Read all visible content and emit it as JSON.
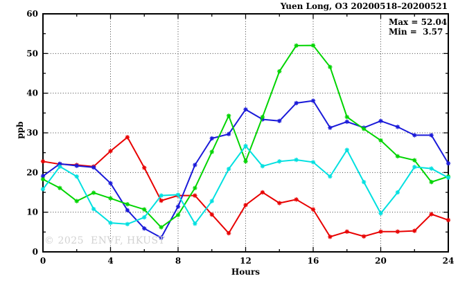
{
  "title": "Yuen Long, O3 20200518–20200521",
  "annotations": {
    "max_label": "Max = 52.04",
    "min_label": "Min =  3.57"
  },
  "watermark": "© 2025  ENVF, HKUST",
  "axes": {
    "x_label": "Hours",
    "y_label": "ppb"
  },
  "chart_data": {
    "type": "line",
    "title": "Yuen Long, O3 20200518–20200521",
    "xlabel": "Hours",
    "ylabel": "ppb",
    "xlim": [
      0,
      24
    ],
    "ylim": [
      0,
      60
    ],
    "xticks": [
      0,
      4,
      8,
      12,
      16,
      20,
      24
    ],
    "yticks": [
      0,
      10,
      20,
      30,
      40,
      50,
      60
    ],
    "x_minor_step": 2,
    "y_minor_step": 5,
    "grid": true,
    "legend_position": "top-right-inside",
    "max": 52.04,
    "min": 3.57,
    "x": [
      0,
      1,
      2,
      3,
      4,
      5,
      6,
      7,
      8,
      9,
      10,
      11,
      12,
      13,
      14,
      15,
      16,
      17,
      18,
      19,
      20,
      21,
      22,
      23,
      24
    ],
    "series": [
      {
        "name": "red",
        "color": "#e80000",
        "values": [
          22.8,
          22.1,
          21.9,
          21.5,
          25.4,
          28.9,
          21.2,
          12.9,
          14.2,
          14.2,
          9.4,
          4.7,
          11.8,
          15.0,
          12.3,
          13.2,
          10.7,
          3.8,
          5.1,
          3.9,
          5.1,
          5.1,
          5.3,
          9.5,
          8.0
        ]
      },
      {
        "name": "blue",
        "color": "#1a1ad9",
        "values": [
          19.1,
          22.2,
          21.7,
          21.3,
          17.3,
          10.5,
          5.9,
          3.57,
          11.4,
          21.9,
          28.6,
          29.7,
          35.9,
          33.4,
          33.0,
          37.5,
          38.1,
          31.3,
          32.8,
          31.3,
          33.0,
          31.5,
          29.4,
          29.4,
          22.3
        ]
      },
      {
        "name": "green",
        "color": "#00d400",
        "values": [
          18.3,
          16.1,
          12.8,
          14.9,
          13.5,
          12.0,
          10.7,
          6.2,
          9.3,
          16.1,
          25.2,
          34.3,
          22.8,
          34.0,
          45.5,
          52.0,
          52.04,
          46.6,
          34.0,
          31.0,
          28.1,
          24.1,
          23.1,
          17.6,
          19.0
        ]
      },
      {
        "name": "cyan",
        "color": "#00e0e0",
        "values": [
          15.8,
          21.5,
          19.0,
          10.8,
          7.3,
          7.0,
          8.7,
          14.2,
          14.4,
          7.1,
          12.8,
          20.9,
          26.7,
          21.6,
          22.8,
          23.2,
          22.6,
          19.0,
          25.7,
          17.6,
          9.7,
          15.0,
          21.4,
          21.0,
          18.7
        ]
      }
    ]
  }
}
